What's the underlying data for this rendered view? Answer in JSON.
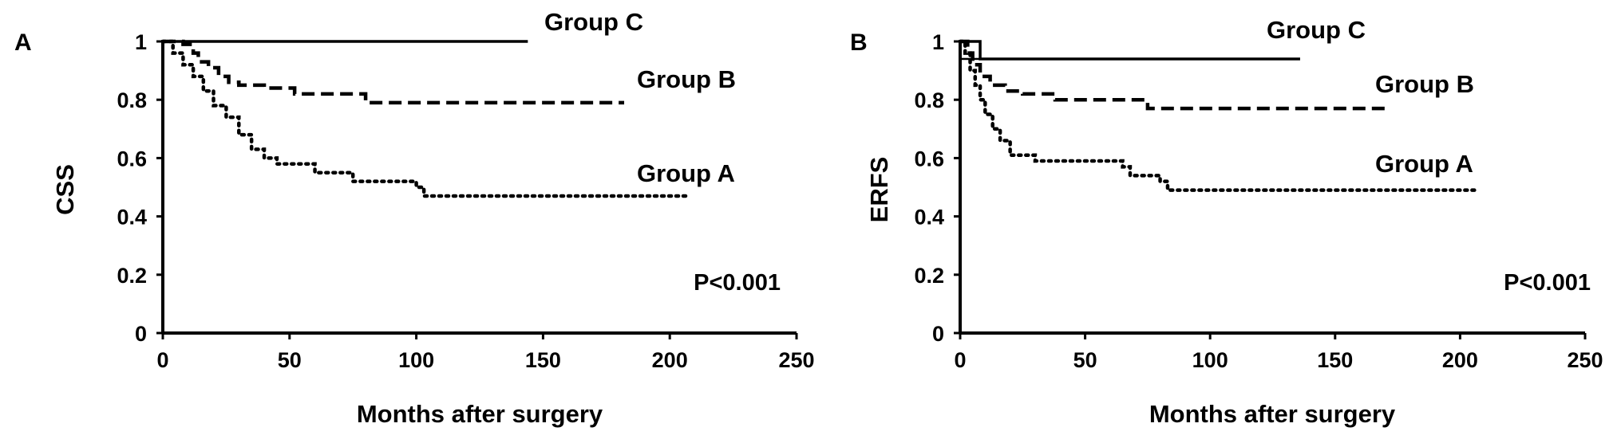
{
  "chart_data": [
    {
      "type": "line",
      "panel": "A",
      "ylabel": "CSS",
      "xlabel": "Months after surgery",
      "xlim": [
        0,
        250
      ],
      "ylim": [
        0,
        1
      ],
      "xticks": [
        0,
        50,
        100,
        150,
        200,
        250
      ],
      "yticks": [
        0,
        0.2,
        0.4,
        0.6,
        0.8,
        1
      ],
      "xtick_labels": [
        "0",
        "50",
        "100",
        "150",
        "200",
        "250"
      ],
      "ytick_labels": [
        "0",
        "0.2",
        "0.4",
        "0.6",
        "0.8",
        "1"
      ],
      "annotation": "P<0.001",
      "series": [
        {
          "name": "Group C",
          "style": "solid",
          "x": [
            0,
            144
          ],
          "y": [
            1,
            1
          ]
        },
        {
          "name": "Group B",
          "style": "dashed",
          "x": [
            0,
            8,
            12,
            14,
            18,
            22,
            26,
            30,
            40,
            52,
            80,
            182
          ],
          "y": [
            1,
            0.99,
            0.96,
            0.93,
            0.91,
            0.88,
            0.86,
            0.85,
            0.84,
            0.82,
            0.79,
            0.79
          ]
        },
        {
          "name": "Group A",
          "style": "dotted",
          "x": [
            0,
            4,
            8,
            12,
            16,
            20,
            25,
            30,
            35,
            40,
            45,
            50,
            60,
            75,
            100,
            103,
            208
          ],
          "y": [
            1,
            0.96,
            0.92,
            0.88,
            0.83,
            0.78,
            0.74,
            0.68,
            0.63,
            0.6,
            0.58,
            0.58,
            0.55,
            0.52,
            0.5,
            0.47,
            0.47
          ]
        }
      ]
    },
    {
      "type": "line",
      "panel": "B",
      "ylabel": "ERFS",
      "xlabel": "Months after surgery",
      "xlim": [
        0,
        250
      ],
      "ylim": [
        0,
        1
      ],
      "xticks": [
        0,
        50,
        100,
        150,
        200,
        250
      ],
      "yticks": [
        0,
        0.2,
        0.4,
        0.6,
        0.8,
        1
      ],
      "xtick_labels": [
        "0",
        "50",
        "100",
        "150",
        "200",
        "250"
      ],
      "ytick_labels": [
        "0",
        "0.2",
        "0.4",
        "0.6",
        "0.8",
        "1"
      ],
      "annotation": "P<0.001",
      "series": [
        {
          "name": "Group C",
          "style": "solid",
          "x": [
            0,
            8,
            8,
            136
          ],
          "y": [
            1,
            1,
            0.94,
            0.94
          ]
        },
        {
          "name": "Group B",
          "style": "dashed",
          "x": [
            0,
            3,
            5,
            8,
            12,
            18,
            25,
            38,
            75,
            170
          ],
          "y": [
            1,
            0.96,
            0.92,
            0.88,
            0.85,
            0.83,
            0.82,
            0.8,
            0.77,
            0.77
          ]
        },
        {
          "name": "Group A",
          "style": "dotted",
          "x": [
            0,
            2,
            4,
            6,
            8,
            10,
            13,
            16,
            20,
            30,
            65,
            68,
            80,
            83,
            206
          ],
          "y": [
            1,
            0.96,
            0.9,
            0.85,
            0.8,
            0.75,
            0.7,
            0.66,
            0.61,
            0.59,
            0.57,
            0.54,
            0.52,
            0.49,
            0.49
          ]
        }
      ]
    }
  ]
}
